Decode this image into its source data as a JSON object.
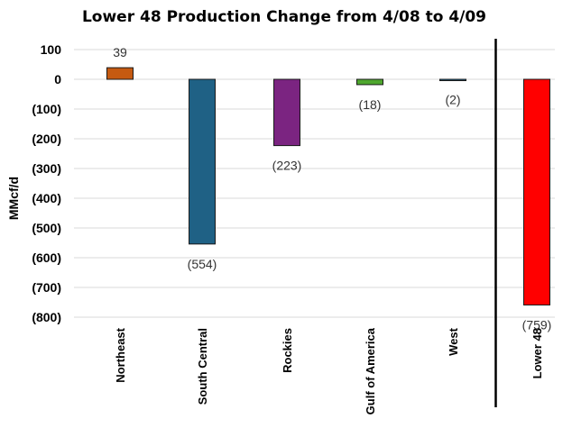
{
  "chart_data": {
    "type": "bar",
    "title": "Lower 48 Production Change from 4/08 to 4/09",
    "xlabel": "",
    "ylabel": "MMcf/d",
    "ylim": [
      -800,
      100
    ],
    "yticks": [
      100,
      0,
      -100,
      -200,
      -300,
      -400,
      -500,
      -600,
      -700,
      -800
    ],
    "ytick_labels": [
      "100",
      "0",
      "(100)",
      "(200)",
      "(300)",
      "(400)",
      "(500)",
      "(600)",
      "(700)",
      "(800)"
    ],
    "grid": true,
    "categories": [
      "Northeast",
      "South Central",
      "Rockies",
      "Gulf of America",
      "West",
      "Lower 48"
    ],
    "values": [
      39,
      -554,
      -223,
      -18,
      -2,
      -759
    ],
    "data_labels": [
      "39",
      "(554)",
      "(223)",
      "(18)",
      "(2)",
      "(759)"
    ],
    "colors": [
      "#c55a11",
      "#1f6185",
      "#7b2481",
      "#4ea72e",
      "#1f6185",
      "#ff0000"
    ],
    "separator_before": "Lower 48"
  }
}
